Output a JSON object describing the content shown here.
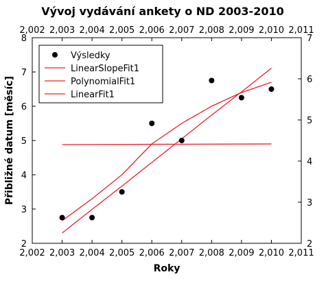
{
  "chart_data": {
    "type": "scatter",
    "title": "Vývoj vydávání ankety o ND 2003-2010",
    "xlabel": "Roky",
    "ylabel": "Přibližné datum [měsíc]",
    "xlim": [
      2.002,
      2.011
    ],
    "ylim": [
      2,
      8
    ],
    "y2lim": [
      2,
      7
    ],
    "x_ticks": [
      2.002,
      2.003,
      2.004,
      2.005,
      2.006,
      2.007,
      2.008,
      2.009,
      2.01,
      2.011
    ],
    "x_tick_labels": [
      "2,002",
      "2,003",
      "2,004",
      "2,005",
      "2,006",
      "2,007",
      "2,008",
      "2,009",
      "2,010",
      "2,011"
    ],
    "y_ticks": [
      2,
      3,
      4,
      5,
      6,
      7,
      8
    ],
    "y_tick_labels": [
      "2",
      "3",
      "4",
      "5",
      "6",
      "7",
      "8"
    ],
    "y2_ticks": [
      2,
      3,
      4,
      5,
      6,
      7
    ],
    "y2_tick_labels": [
      "2",
      "3",
      "4",
      "5",
      "6",
      "7"
    ],
    "grid": false,
    "legend_position": "top-left",
    "series": [
      {
        "name": "Výsledky",
        "kind": "scatter",
        "color": "#000000",
        "x": [
          2.003,
          2.004,
          2.005,
          2.006,
          2.007,
          2.008,
          2.009,
          2.01
        ],
        "y": [
          2.75,
          2.75,
          3.5,
          5.5,
          5.0,
          6.75,
          6.25,
          6.5
        ]
      },
      {
        "name": "LinearSlopeFit1",
        "kind": "line",
        "color": "#e8202a",
        "x": [
          2.003,
          2.004,
          2.005,
          2.006,
          2.007,
          2.008,
          2.009,
          2.01
        ],
        "y": [
          2.3,
          2.99,
          3.67,
          4.36,
          5.05,
          5.74,
          6.42,
          7.11
        ]
      },
      {
        "name": "PolynomialFit1",
        "kind": "line",
        "color": "#e8202a",
        "x": [
          2.003,
          2.004,
          2.005,
          2.006,
          2.007,
          2.008,
          2.009,
          2.01
        ],
        "y": [
          2.66,
          3.3,
          4.0,
          4.9,
          5.5,
          6.0,
          6.4,
          6.7
        ]
      },
      {
        "name": "LinearFit1",
        "kind": "line",
        "color": "#e8202a",
        "x": [
          2.003,
          2.01
        ],
        "y": [
          4.88,
          4.9
        ]
      }
    ]
  }
}
